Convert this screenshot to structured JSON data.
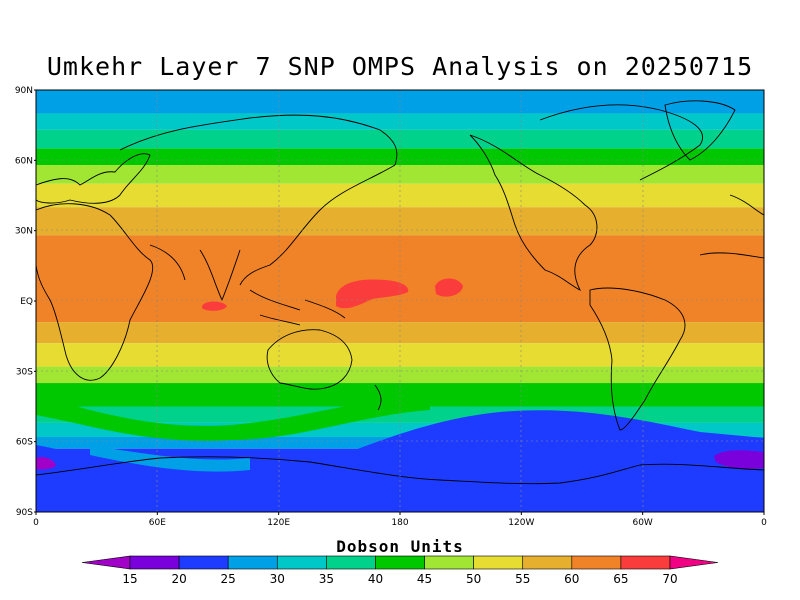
{
  "title": "Umkehr Layer 7 SNP OMPS Analysis on 20250715",
  "units_label": "Dobson Units",
  "lat_ticks": [
    "90N",
    "60N",
    "30N",
    "EQ",
    "30S",
    "60S",
    "90S"
  ],
  "lon_ticks": [
    "0",
    "60E",
    "120E",
    "180",
    "120W",
    "60W",
    "0"
  ],
  "colorbar": {
    "labels": [
      "15",
      "20",
      "25",
      "30",
      "35",
      "40",
      "45",
      "50",
      "55",
      "60",
      "65",
      "70"
    ],
    "colors": [
      "#a000c8",
      "#7a00dc",
      "#1e3cff",
      "#00a0e6",
      "#00c8c8",
      "#00d28c",
      "#00c800",
      "#a0e632",
      "#e6dc32",
      "#e6af2d",
      "#f08228",
      "#fa3c3c",
      "#f00082"
    ]
  },
  "bands": [
    {
      "lat_top": 90,
      "lat_bot": 80,
      "color": "#00a0e6"
    },
    {
      "lat_top": 80,
      "lat_bot": 73,
      "color": "#00c8c8"
    },
    {
      "lat_top": 73,
      "lat_bot": 65,
      "color": "#00d28c"
    },
    {
      "lat_top": 65,
      "lat_bot": 58,
      "color": "#00c800"
    },
    {
      "lat_top": 58,
      "lat_bot": 50,
      "color": "#a0e632"
    },
    {
      "lat_top": 50,
      "lat_bot": 40,
      "color": "#e6dc32"
    },
    {
      "lat_top": 40,
      "lat_bot": 28,
      "color": "#e6af2d"
    },
    {
      "lat_top": 28,
      "lat_bot": -9,
      "color": "#f08228"
    },
    {
      "lat_top": -9,
      "lat_bot": -18,
      "color": "#e6af2d"
    },
    {
      "lat_top": -18,
      "lat_bot": -28,
      "color": "#e6dc32"
    },
    {
      "lat_top": -28,
      "lat_bot": -35,
      "color": "#a0e632"
    },
    {
      "lat_top": -35,
      "lat_bot": -45,
      "color": "#00c800"
    },
    {
      "lat_top": -45,
      "lat_bot": -52,
      "color": "#00d28c"
    },
    {
      "lat_top": -52,
      "lat_bot": -58,
      "color": "#00c8c8"
    },
    {
      "lat_top": -58,
      "lat_bot": -63,
      "color": "#00a0e6"
    },
    {
      "lat_top": -63,
      "lat_bot": -90,
      "color": "#1e3cff"
    }
  ]
}
